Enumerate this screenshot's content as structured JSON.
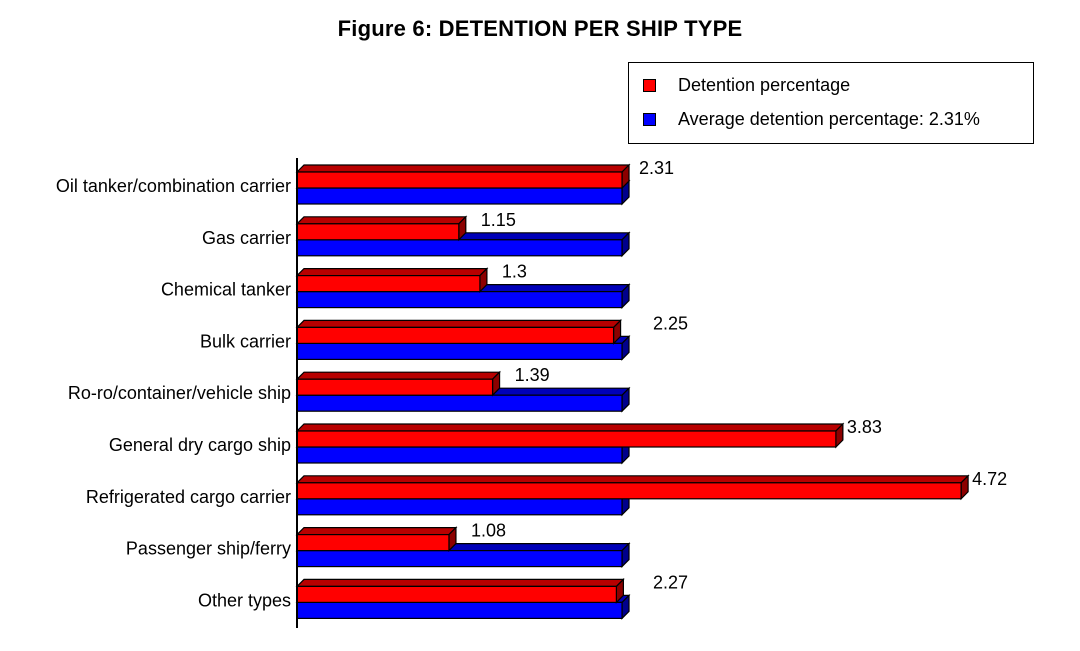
{
  "chart_data": {
    "type": "bar",
    "orientation": "horizontal",
    "title": "Figure 6: DETENTION PER SHIP TYPE",
    "categories": [
      "Oil tanker/combination carrier",
      "Gas carrier",
      "Chemical tanker",
      "Bulk carrier",
      "Ro-ro/container/vehicle ship",
      "General dry cargo ship",
      "Refrigerated cargo carrier",
      "Passenger ship/ferry",
      "Other types"
    ],
    "series": [
      {
        "name": "Detention percentage",
        "color": "#ff0000",
        "values": [
          2.31,
          1.15,
          1.3,
          2.25,
          1.39,
          3.83,
          4.72,
          1.08,
          2.27
        ],
        "data_labels": [
          "2.31",
          "1.15",
          "1.3",
          "2.25",
          "1.39",
          "3.83",
          "4.72",
          "1.08",
          "2.27"
        ]
      },
      {
        "name": "Average detention percentage: 2.31%",
        "color": "#0000ff",
        "values": [
          2.31,
          2.31,
          2.31,
          2.31,
          2.31,
          2.31,
          2.31,
          2.31,
          2.31
        ]
      }
    ],
    "xlim": [
      0,
      5
    ],
    "grid": false,
    "legend_position": "top-right",
    "style": "3d"
  }
}
